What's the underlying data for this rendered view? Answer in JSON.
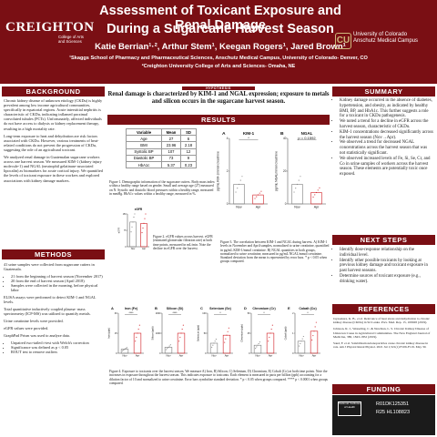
{
  "header": {
    "title_line1": "Assessment of Toxicant Exposure and Renal Damage",
    "title_line2": "During a Sugarcane Harvest Season",
    "authors": "Katie Berrian¹·², Arthur Stem¹, Keegan Rogers¹, Jared Brown¹",
    "affiliation1": "¹Skaggs School of Pharmacy and Pharmaceutical Sciences, Anschutz Medical Campus, University of Colorado- Denver, CO",
    "affiliation2": "²Creighton University College of Arts and Sciences- Omaha, NE",
    "left_logo_word": "CREIGHTON",
    "left_logo_sub": "College of Arts and Sciences",
    "right_logo_line1": "University of Colorado",
    "right_logo_line2": "Anschutz Medical Campus",
    "colors": {
      "maroon": "#7a0f14",
      "gold": "#cfb87c"
    }
  },
  "sections": {
    "background": "BACKGROUND",
    "methods": "METHODS",
    "results": "RESULTS",
    "hypothesis": "HYPOTHESIS",
    "summary": "SUMMARY",
    "next_steps": "NEXT STEPS",
    "references": "REFERENCES",
    "funding": "FUNDING"
  },
  "background": {
    "p1": "Chronic kidney disease of unknown etiology (CKDu) is highly prevalent among low income agricultural communities, specifically in equatorial regions. Acute interstitial nephritis is characteristic of CKDu, indicating inflamed proximal convoluted tubules (PCTs). Unfortunately, affected individuals do not have access to dialysis or kidney replacement therapy, resulting in a high mortality rate.",
    "p2": "Long-term exposure to heat and dehydration are risk factors associated with CKDu. However, various treatments of heat-related conditions do not prevent the progression of CKDu, suggesting the role of an agricultural toxicant.",
    "p3": "We analyzed renal damage in Guatemalan sugarcane workers across one harvest season. We measured KIM-1 (kidney injury molecule-1) and NGAL (neutrophil gelatinase-associated lipocalin) as biomarkers for acute cortical injury. We quantified the levels of toxicant exposure in these workers and explored associations with kidney damage markers."
  },
  "methods": {
    "p1": "41 urine samples were collected from sugarcane cutters in Guatemala.",
    "bullets": [
      "21 from the beginning of harvest season (November 2017)",
      "20 from the end of harvest season (April 2018)",
      "Samples were collected in the morning, before physical labor"
    ],
    "p2": "ELISA assays were performed to detect KIM-1 and NGAL levels.",
    "p3": "Total quantitative inductively coupled plasma- mass spectrometry (ICP-MS) was utilized to quantify metals.",
    "p4": "Urine creatinine levels were provided.",
    "p5": "eGFR values were provided.",
    "p6": "GraphPad Prism was used to analyze data.",
    "bullets2": [
      "Unpaired two-tailed t-test with Welch's correction",
      "Significance was defined as p < 0.05",
      "ROUT test to remove outliers"
    ]
  },
  "hypothesis": "Renal damage is characterized by KIM-1 and NGAL expression; exposure to metals and silicon occurs in the sugarcane harvest season.",
  "table": {
    "headers": [
      "Variable",
      "Mean",
      "SD"
    ],
    "rows": [
      [
        "Age",
        "27",
        "6"
      ],
      [
        "BMI",
        "23.96",
        "2.18"
      ],
      [
        "Systolic BP",
        "107",
        "12"
      ],
      [
        "Diastolic BP",
        "73",
        "9"
      ],
      [
        "HbA1c",
        "5.37",
        "0.23"
      ]
    ]
  },
  "captions": {
    "fig1": "Figure 1. Demographic information of the sugarcane cutters. Body mass index within a healthy range based on gender. Small and average age (27) measured on N. Systolic and diastolic blood pressures within a healthy range, measured in mmHg. HbA1c values within a healthy range, measured in %.",
    "fig2": "Figure 2. eGFR values across harvest. eGFR (estimated glomerular filtration rate) at both time points, measured in mL/min. Note the decline in eGFR over the harvest.",
    "fig3": "Figure 3. The correlation between KIM-1 and NGAL during harvest. A) KIM-1 levels in November and April samples, normalized to urine creatinine, quantified in pg/mL KIM-1/mmol creatinine. B) NGAL quantities in both groups, normalized to urine creatinine, measured in pg/mL NGAL/mmol creatinine. Standard deviation from the mean is represented by error bars. * p < 0.05 when groups compared.",
    "fig4": "Figure 4. Exposure to toxicants over the harvest season. We measure A) Iron, B) Silicon, C) Selenium, D) Chromium, E) Cobalt (Co) at both time points. Note the increases in exposure throughout the harvest season. This indicates exposure to toxicants. Each element is measured in parts per billion (ppb) accounting for a dilution factor of 10 and normalized to urine creatinine. Error bars symbolize standard deviation. * p < 0.05 when groups compared. **** p < 0.0001 when groups compared."
  },
  "summary": {
    "bullets": [
      "Kidney damage occurred in the absence of diabetes, hypertension, and obesity, as indicated by healthy BMI, BP, and HbA1c. This further suggests a role for a toxicant in CKDu pathogenesis.",
      "We noted a trend for a decline in eGFR across the harvest season, characteristic of CKDu.",
      "KIM-1 concentrations decreased significantly across the harvest season (Nov→Apr).",
      "We observed a trend for decreased NGAL concentrations across the harvest season that was not statistically significant.",
      "We observed increased levels of Fe, Si, Se, Cr, and Co in urine samples of workers across the harvest season. These elements are potentially toxic once exposed."
    ]
  },
  "next_steps": {
    "bullets": [
      "Identify dose-response relationship on the individual level.",
      "Identify other possible toxicants by looking at previous kidney damage and toxicant exposure in past harvest seasons.",
      "Determine sources of toxicant exposure (e.g., drinking water)."
    ]
  },
  "references": [
    "Jayasekara, K. B., et al. Relevance of heat stress and dehydration to chronic kidney disease (CKDu) in Sri Lanka. Prev. Med. Rep. 15, 100928 (2019).",
    "Johnson, R. J., Wesseling, C. & Newman, L. S. Chronic Kidney Disease of Unknown Cause in Agricultural Communities. The New England Journal of Medicine, 380, 1843-1852 (2019).",
    "Saud, F. et al. Solubilization/nanoparticles cause chronic kidney disease in rats. Am J Physiol Renal Physiol. 2021 Jul 1;321(1):F106-F119. May 30."
  ],
  "funding": {
    "lines": [
      "R01DK125351",
      "R25 HL108823"
    ],
    "logo_text": "National Institutes of Health"
  },
  "chart_data": [
    {
      "type": "bar",
      "title": "eGFR",
      "ylabel": "eGFR",
      "categories": [
        "Nov",
        "Apr"
      ],
      "values": [
        113,
        107
      ],
      "ylim": [
        0,
        150
      ]
    },
    {
      "type": "bar",
      "title": "KIM-1",
      "panel": "A",
      "ylabel": "pg/mL KIM-1/mmol creatinine",
      "categories": [
        "Nov",
        "Apr"
      ],
      "values": [
        1.2,
        0.55
      ],
      "ylim": [
        0,
        4
      ],
      "significance": "*"
    },
    {
      "type": "bar",
      "title": "NGAL",
      "panel": "B",
      "ylabel": "pg/mL NGAL/mmol creatinine",
      "categories": [
        "Nov",
        "Apr"
      ],
      "values": [
        12,
        7
      ],
      "ylim": [
        0,
        40
      ],
      "annotation": "p = 0.1592"
    },
    {
      "type": "bar",
      "title": "Iron (Fe)",
      "panel": "A",
      "ylabel": "Iron (ppb)",
      "categories": [
        "Nov",
        "Apr"
      ],
      "values": [
        3,
        15
      ],
      "ylim": [
        0,
        30
      ],
      "significance": "****"
    },
    {
      "type": "bar",
      "title": "Silicon (Si)",
      "panel": "B",
      "ylabel": "Silicon (ppb)",
      "categories": [
        "Nov",
        "Apr"
      ],
      "values": [
        300,
        1000
      ],
      "ylim": [
        0,
        2000
      ],
      "significance": "****"
    },
    {
      "type": "bar",
      "title": "Selenium (Se)",
      "panel": "C",
      "ylabel": "Selenium (ppb)",
      "categories": [
        "Nov",
        "Apr"
      ],
      "values": [
        25,
        45
      ],
      "ylim": [
        0,
        100
      ],
      "significance": "*"
    },
    {
      "type": "bar",
      "title": "Chromium (Cr)",
      "panel": "D",
      "ylabel": "Chromium (ppb)",
      "categories": [
        "Nov",
        "Apr"
      ],
      "values": [
        10,
        25
      ],
      "ylim": [
        0,
        50
      ],
      "significance": "*"
    },
    {
      "type": "bar",
      "title": "Cobalt (Co)",
      "panel": "E",
      "ylabel": "Cobalt (ppb)",
      "categories": [
        "Nov",
        "Apr"
      ],
      "values": [
        0.6,
        1.1
      ],
      "ylim": [
        0,
        2
      ],
      "significance": "*"
    }
  ]
}
